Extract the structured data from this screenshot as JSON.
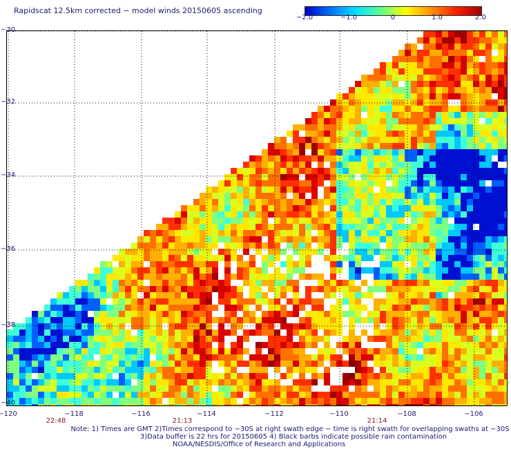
{
  "title": "Rapidscat 12.5km corrected − model winds 20150605 ascending",
  "colorbar": {
    "ticks": [
      "−2.0",
      "−1.0",
      "0",
      "1.0",
      "2.0"
    ],
    "tick_values": [
      -2.0,
      -1.0,
      0,
      1.0,
      2.0
    ],
    "range": [
      -2.0,
      2.0
    ],
    "colors": [
      "#0000c8",
      "#0070ff",
      "#00e0ff",
      "#60ff90",
      "#ffff00",
      "#ff9000",
      "#ff2000",
      "#a00000"
    ]
  },
  "map": {
    "lon_range": [
      -120,
      -105
    ],
    "lat_range": [
      -40,
      -30
    ],
    "lat_labels": [
      "−30",
      "−32",
      "−34",
      "−36",
      "−38",
      "−40"
    ],
    "lon_labels": [
      "−120",
      "−118",
      "−116",
      "−114",
      "−112",
      "−110",
      "−108",
      "−106"
    ],
    "time_labels": [
      "22:48",
      "21:13",
      "21:14"
    ],
    "grid": true
  },
  "notes": {
    "line1": "Note: 1) Times are GMT 2)Times correspond to −30S at right swath edge − time is right swath for overlapping swaths at −30S",
    "line2": "3)Data buffer is 22 hrs for 20150605 4) Black barbs indicate possible rain contamination",
    "line3": "NOAA/NESDIS/Office of Research and Applications"
  }
}
